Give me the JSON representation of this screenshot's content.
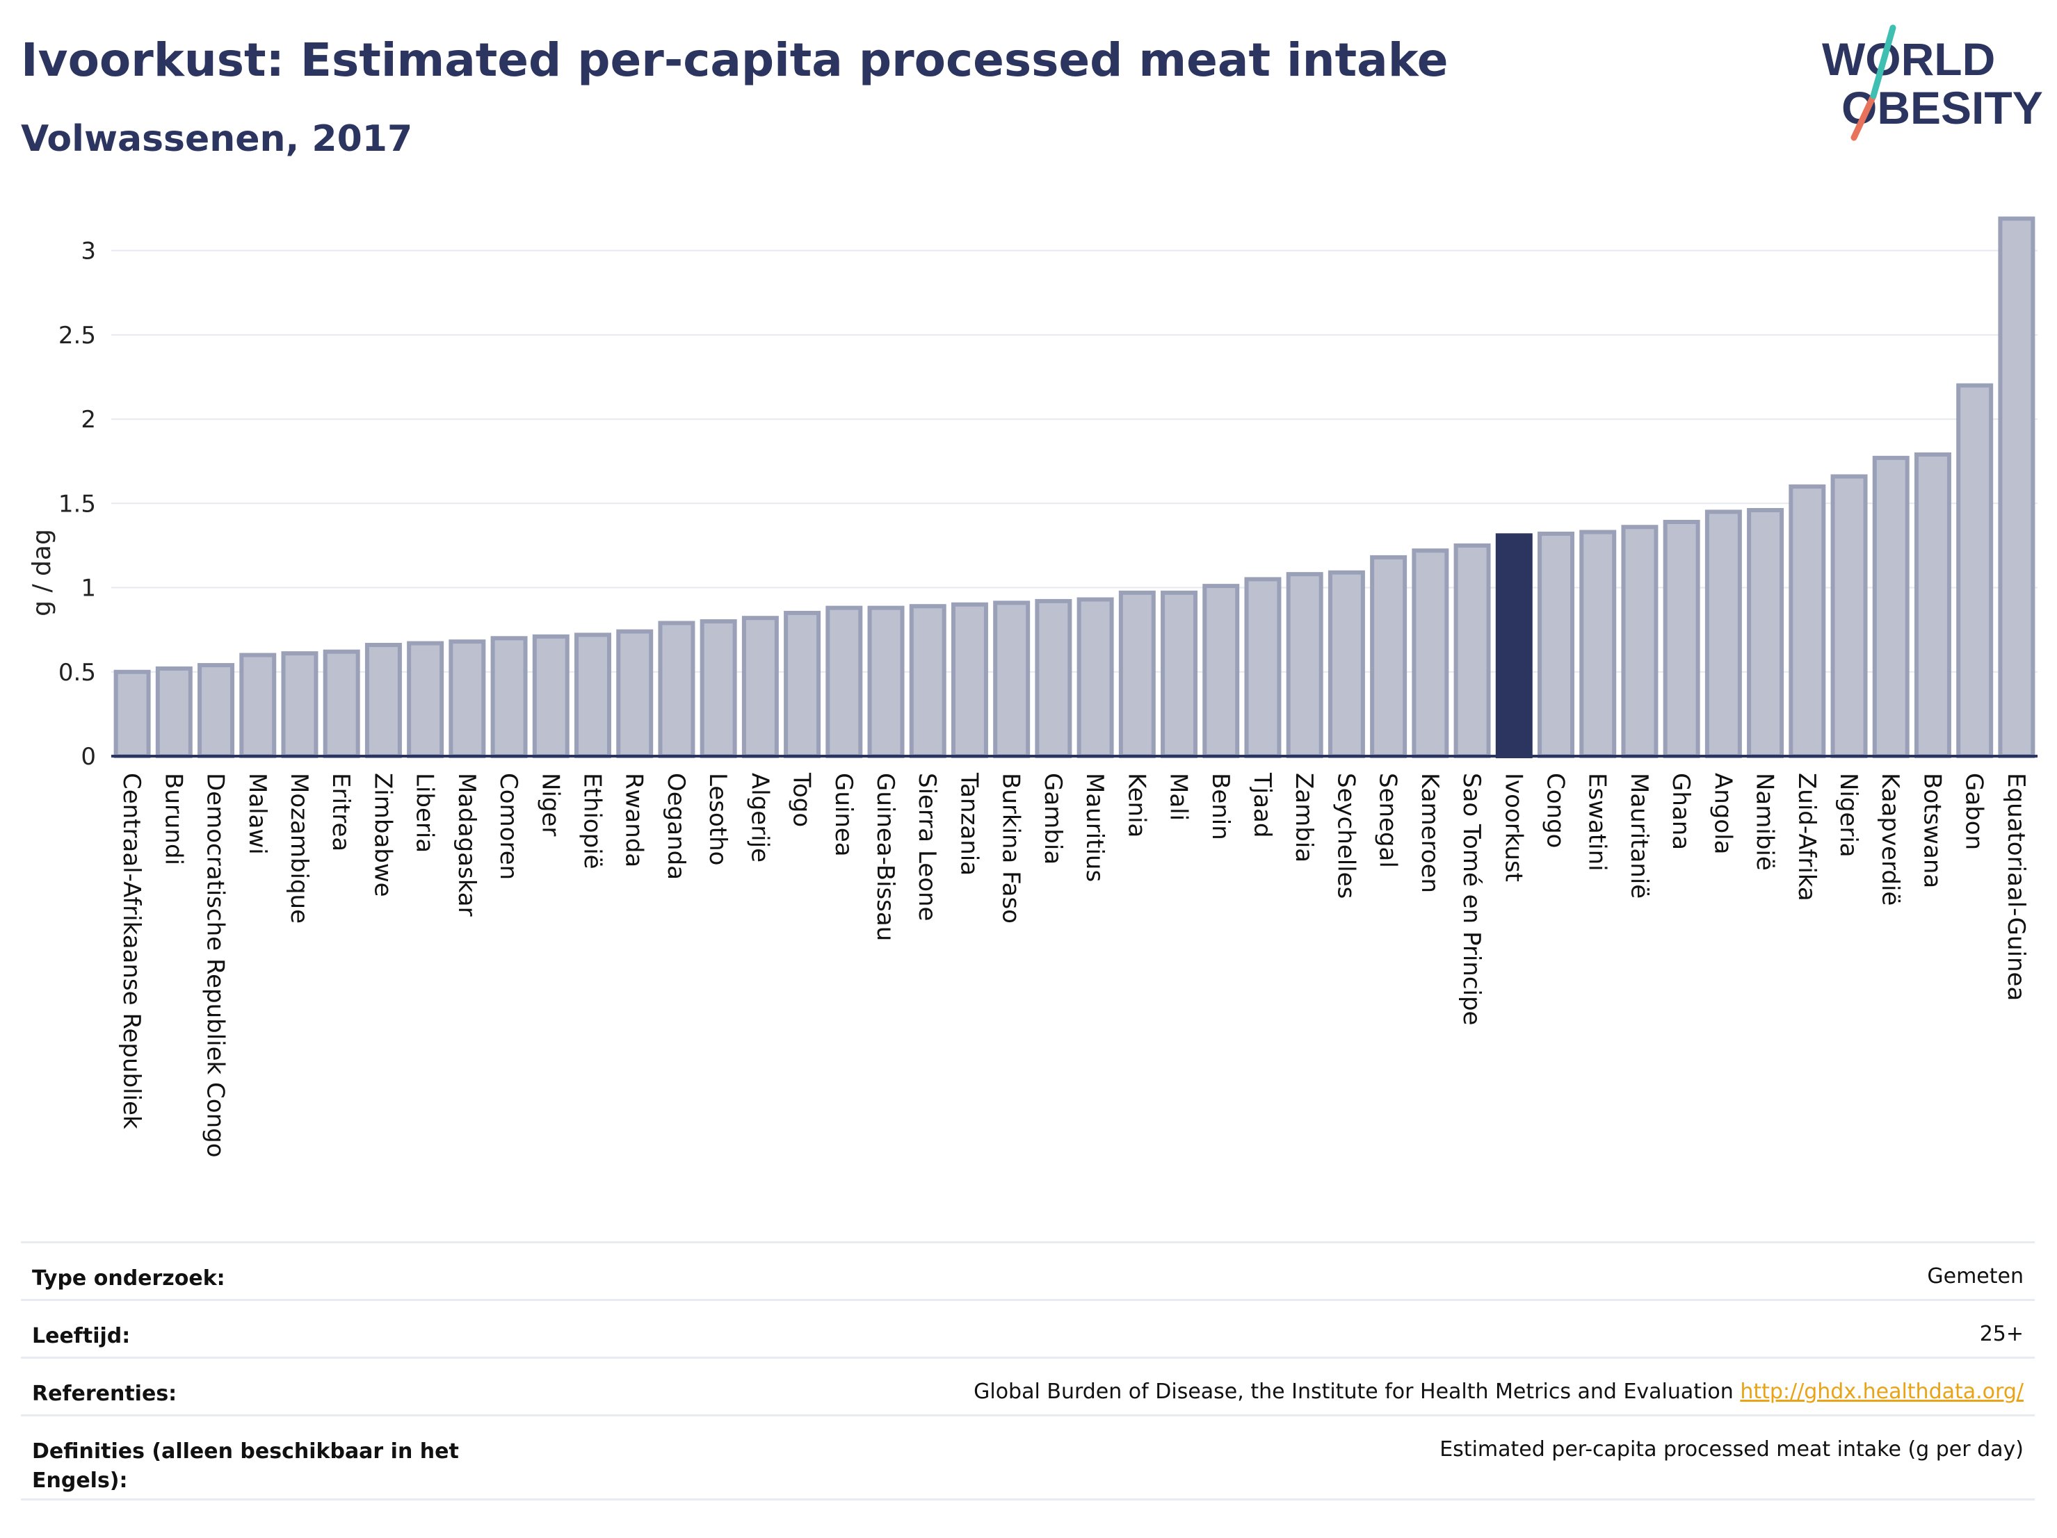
{
  "header": {
    "title": "Ivoorkust: Estimated per-capita processed meat intake",
    "subtitle": "Volwassenen, 2017"
  },
  "logo": {
    "line1": "WORLD",
    "line2": "OBESITY"
  },
  "colors": {
    "highlight": "#2b3560",
    "bar_fill": "#bcc0cf",
    "bar_stroke": "#9aa0b7",
    "grid": "#e7e9ef",
    "logo_teal": "#3fbfb1",
    "logo_coral": "#e8735c"
  },
  "chart_data": {
    "type": "bar",
    "ylabel": "g / dag",
    "ylim": [
      0,
      3.25
    ],
    "yticks": [
      0,
      0.5,
      1,
      1.5,
      2,
      2.5,
      3
    ],
    "ytick_labels": [
      "0",
      "0.5",
      "1",
      "1.5",
      "2",
      "2.5",
      "3"
    ],
    "highlight": "Ivoorkust",
    "categories": [
      "Centraal-Afrikaanse Republiek",
      "Burundi",
      "Democratische Republiek Congo",
      "Malawi",
      "Mozambique",
      "Eritrea",
      "Zimbabwe",
      "Liberia",
      "Madagaskar",
      "Comoren",
      "Niger",
      "Ethiopië",
      "Rwanda",
      "Oeganda",
      "Lesotho",
      "Algerije",
      "Togo",
      "Guinea",
      "Guinea-Bissau",
      "Sierra Leone",
      "Tanzania",
      "Burkina Faso",
      "Gambia",
      "Mauritius",
      "Kenia",
      "Mali",
      "Benin",
      "Tjaad",
      "Zambia",
      "Seychelles",
      "Senegal",
      "Kameroen",
      "Sao Tomé en Principe",
      "Ivoorkust",
      "Congo",
      "Eswatini",
      "Mauritanië",
      "Ghana",
      "Angola",
      "Namibië",
      "Zuid-Afrika",
      "Nigeria",
      "Kaapverdië",
      "Botswana",
      "Gabon",
      "Equatoriaal-Guinea"
    ],
    "values": [
      0.5,
      0.52,
      0.54,
      0.6,
      0.61,
      0.62,
      0.66,
      0.67,
      0.68,
      0.7,
      0.71,
      0.72,
      0.74,
      0.79,
      0.8,
      0.82,
      0.85,
      0.88,
      0.88,
      0.89,
      0.9,
      0.91,
      0.92,
      0.93,
      0.97,
      0.97,
      1.01,
      1.05,
      1.08,
      1.09,
      1.18,
      1.22,
      1.25,
      1.31,
      1.32,
      1.33,
      1.36,
      1.39,
      1.45,
      1.46,
      1.6,
      1.66,
      1.77,
      1.79,
      2.2,
      3.19
    ]
  },
  "info_table": [
    {
      "label": "Type onderzoek:",
      "value": "Gemeten"
    },
    {
      "label": "Leeftijd:",
      "value": "25+"
    },
    {
      "label": "Referenties:",
      "value": "Global Burden of Disease, the Institute for Health Metrics and Evaluation",
      "link": "http://ghdx.healthdata.org/"
    },
    {
      "label": "Definities (alleen beschikbaar in het Engels):",
      "value": "Estimated per-capita processed meat intake (g per day)"
    }
  ]
}
